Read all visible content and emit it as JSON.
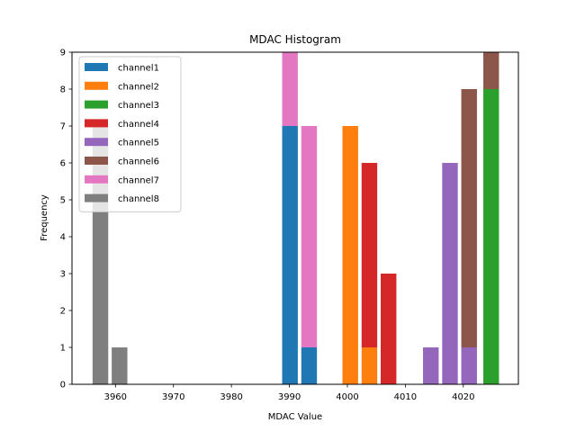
{
  "chart_data": {
    "type": "bar",
    "stacked": true,
    "title": "MDAC Histogram",
    "xlabel": "MDAC Value",
    "ylabel": "Frequency",
    "xlim": [
      3952.5,
      4029.5
    ],
    "ylim": [
      0,
      9
    ],
    "xticks": [
      3960,
      3970,
      3980,
      3990,
      4000,
      4010,
      4020
    ],
    "yticks": [
      0,
      1,
      2,
      3,
      4,
      5,
      6,
      7,
      8,
      9
    ],
    "bar_width": 2.7,
    "legend_position": "upper-left",
    "series": [
      {
        "name": "channel1",
        "color": "#1f77b4",
        "bins": [
          {
            "x": 3990.1,
            "count": 7
          },
          {
            "x": 3993.4,
            "count": 1
          }
        ]
      },
      {
        "name": "channel2",
        "color": "#ff7f0e",
        "bins": [
          {
            "x": 4000.5,
            "count": 7
          },
          {
            "x": 4003.8,
            "count": 1
          }
        ]
      },
      {
        "name": "channel3",
        "color": "#2ca02c",
        "bins": [
          {
            "x": 4024.8,
            "count": 8
          }
        ]
      },
      {
        "name": "channel4",
        "color": "#d62728",
        "bins": [
          {
            "x": 4003.8,
            "count": 5
          },
          {
            "x": 4007.1,
            "count": 3
          }
        ]
      },
      {
        "name": "channel5",
        "color": "#9467bd",
        "bins": [
          {
            "x": 4014.4,
            "count": 1
          },
          {
            "x": 4017.7,
            "count": 6
          },
          {
            "x": 4021.0,
            "count": 1
          }
        ]
      },
      {
        "name": "channel6",
        "color": "#8c564b",
        "bins": [
          {
            "x": 4021.0,
            "count": 7
          },
          {
            "x": 4024.8,
            "count": 1
          }
        ]
      },
      {
        "name": "channel7",
        "color": "#e377c2",
        "bins": [
          {
            "x": 3990.1,
            "count": 2
          },
          {
            "x": 3993.4,
            "count": 6
          }
        ]
      },
      {
        "name": "channel8",
        "color": "#7f7f7f",
        "bins": [
          {
            "x": 3957.4,
            "count": 7
          },
          {
            "x": 3960.7,
            "count": 1
          }
        ]
      }
    ]
  }
}
